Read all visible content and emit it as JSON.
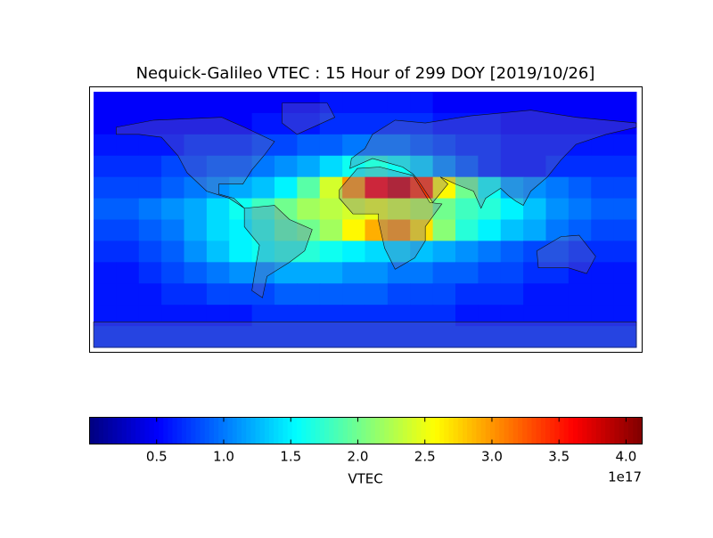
{
  "chart_data": {
    "type": "heatmap",
    "title": "Nequick-Galileo VTEC : 15 Hour of 299 DOY [2019/10/26]",
    "colorbar_label": "VTEC",
    "colorbar_offset": "1e17",
    "colormap": "jet",
    "clim": [
      0,
      4.12
    ],
    "cticks": [
      0.5,
      1.0,
      1.5,
      2.0,
      2.5,
      3.0,
      3.5,
      4.0
    ],
    "values": [
      [
        0.5,
        0.5,
        0.5,
        0.5,
        0.5,
        0.5,
        0.5,
        0.5,
        0.5,
        0.5,
        0.6,
        0.6,
        0.6,
        0.6,
        0.6,
        0.5,
        0.5,
        0.5,
        0.5,
        0.5,
        0.5,
        0.5,
        0.5,
        0.5
      ],
      [
        0.5,
        0.5,
        0.5,
        0.5,
        0.5,
        0.5,
        0.5,
        0.6,
        0.6,
        0.6,
        0.7,
        0.7,
        0.7,
        0.7,
        0.7,
        0.6,
        0.6,
        0.6,
        0.5,
        0.5,
        0.5,
        0.5,
        0.5,
        0.5
      ],
      [
        0.6,
        0.6,
        0.6,
        0.6,
        0.7,
        0.7,
        0.7,
        0.8,
        0.8,
        0.9,
        0.9,
        1.0,
        1.0,
        1.0,
        0.9,
        0.8,
        0.7,
        0.7,
        0.6,
        0.6,
        0.6,
        0.6,
        0.6,
        0.6
      ],
      [
        0.7,
        0.7,
        0.7,
        0.8,
        0.8,
        0.9,
        0.9,
        1.0,
        1.1,
        1.2,
        1.4,
        1.6,
        1.7,
        1.6,
        1.4,
        1.1,
        0.9,
        0.7,
        0.6,
        0.6,
        0.7,
        0.7,
        0.7,
        0.7
      ],
      [
        0.8,
        0.8,
        0.8,
        0.9,
        1.0,
        1.1,
        1.2,
        1.3,
        1.5,
        1.9,
        2.4,
        3.0,
        3.6,
        3.8,
        3.4,
        2.6,
        2.0,
        1.6,
        1.2,
        1.1,
        1.0,
        0.9,
        0.8,
        0.8
      ],
      [
        0.9,
        0.9,
        1.0,
        1.1,
        1.2,
        1.4,
        1.6,
        1.8,
        2.0,
        2.2,
        2.3,
        2.4,
        2.5,
        2.4,
        2.3,
        2.0,
        1.8,
        1.7,
        1.5,
        1.3,
        1.1,
        1.0,
        0.9,
        0.9
      ],
      [
        0.8,
        0.8,
        0.9,
        1.0,
        1.2,
        1.4,
        1.5,
        1.7,
        1.9,
        2.0,
        2.2,
        2.6,
        2.9,
        3.0,
        2.7,
        2.1,
        1.7,
        1.5,
        1.3,
        1.2,
        1.0,
        0.9,
        0.8,
        0.8
      ],
      [
        0.7,
        0.7,
        0.8,
        0.9,
        1.1,
        1.3,
        1.5,
        1.6,
        1.7,
        1.7,
        1.6,
        1.5,
        1.4,
        1.4,
        1.3,
        1.2,
        1.1,
        1.0,
        0.9,
        0.8,
        0.8,
        0.7,
        0.7,
        0.7
      ],
      [
        0.6,
        0.6,
        0.7,
        0.8,
        0.9,
        1.0,
        1.1,
        1.1,
        1.2,
        1.2,
        1.2,
        1.1,
        1.1,
        1.0,
        1.0,
        0.9,
        0.9,
        0.8,
        0.8,
        0.7,
        0.7,
        0.6,
        0.6,
        0.6
      ],
      [
        0.6,
        0.6,
        0.6,
        0.7,
        0.7,
        0.8,
        0.8,
        0.8,
        0.9,
        0.9,
        0.9,
        0.9,
        0.9,
        0.8,
        0.8,
        0.8,
        0.7,
        0.7,
        0.7,
        0.6,
        0.6,
        0.6,
        0.6,
        0.6
      ],
      [
        0.6,
        0.6,
        0.6,
        0.6,
        0.6,
        0.6,
        0.6,
        0.7,
        0.7,
        0.7,
        0.7,
        0.7,
        0.7,
        0.7,
        0.7,
        0.7,
        0.6,
        0.6,
        0.6,
        0.6,
        0.6,
        0.6,
        0.6,
        0.6
      ],
      [
        0.7,
        0.7,
        0.7,
        0.7,
        0.7,
        0.7,
        0.7,
        0.7,
        0.7,
        0.7,
        0.7,
        0.7,
        0.7,
        0.7,
        0.7,
        0.7,
        0.7,
        0.7,
        0.7,
        0.7,
        0.7,
        0.7,
        0.7,
        0.7
      ]
    ]
  }
}
